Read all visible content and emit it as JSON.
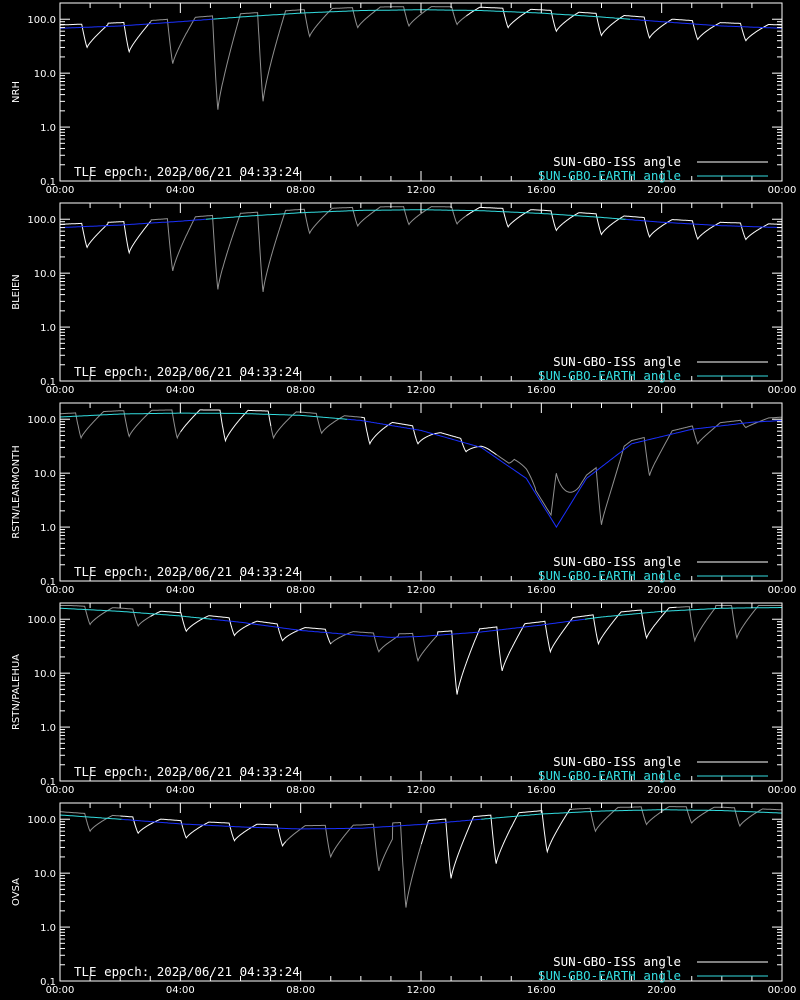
{
  "chart_data": [
    {
      "type": "line",
      "ylabel": "NRH",
      "yscale": "log",
      "ylim": [
        0.1,
        200
      ],
      "yticks": [
        "0.1",
        "1.0",
        "10.0",
        "100.0"
      ],
      "xlim": [
        "00:00",
        "24:00"
      ],
      "xticks": [
        "00:00",
        "04:00",
        "08:00",
        "12:00",
        "16:00",
        "20:00",
        "00:00"
      ],
      "annotation": "TLE epoch: 2023/06/21 04:33:24",
      "legend": [
        "SUN-GBO-ISS angle",
        "SUN-GBO-EARTH angle"
      ],
      "legend_position": "bottom-right",
      "earth_curve": [
        [
          0,
          68
        ],
        [
          2,
          75
        ],
        [
          4,
          90
        ],
        [
          6,
          110
        ],
        [
          8,
          130
        ],
        [
          10,
          145
        ],
        [
          12,
          150
        ],
        [
          14,
          145
        ],
        [
          16,
          130
        ],
        [
          18,
          110
        ],
        [
          20,
          90
        ],
        [
          22,
          75
        ],
        [
          24,
          68
        ]
      ],
      "iss_dips": [
        [
          0.9,
          30
        ],
        [
          2.3,
          25
        ],
        [
          3.75,
          15
        ],
        [
          5.25,
          2.1
        ],
        [
          6.75,
          3
        ],
        [
          8.3,
          48
        ],
        [
          9.9,
          70
        ],
        [
          11.6,
          75
        ],
        [
          13.2,
          80
        ],
        [
          14.9,
          70
        ],
        [
          16.5,
          60
        ],
        [
          18.0,
          50
        ],
        [
          19.6,
          45
        ],
        [
          21.2,
          42
        ],
        [
          22.8,
          40
        ]
      ],
      "iss_sunward_hours": [
        [
          3.0,
          13.5
        ]
      ]
    },
    {
      "type": "line",
      "ylabel": "BLEIEN",
      "yscale": "log",
      "ylim": [
        0.1,
        200
      ],
      "yticks": [
        "0.1",
        "1.0",
        "10.0",
        "100.0"
      ],
      "xlim": [
        "00:00",
        "24:00"
      ],
      "xticks": [
        "00:00",
        "04:00",
        "08:00",
        "12:00",
        "16:00",
        "20:00",
        "00:00"
      ],
      "annotation": "TLE epoch: 2023/06/21 04:33:24",
      "legend": [
        "SUN-GBO-ISS angle",
        "SUN-GBO-EARTH angle"
      ],
      "legend_position": "bottom-right",
      "earth_curve": [
        [
          0,
          70
        ],
        [
          2,
          78
        ],
        [
          4,
          92
        ],
        [
          6,
          112
        ],
        [
          8,
          132
        ],
        [
          10,
          146
        ],
        [
          12,
          150
        ],
        [
          14,
          144
        ],
        [
          16,
          128
        ],
        [
          18,
          108
        ],
        [
          20,
          88
        ],
        [
          22,
          76
        ],
        [
          24,
          70
        ]
      ],
      "iss_dips": [
        [
          0.9,
          30
        ],
        [
          2.3,
          24
        ],
        [
          3.75,
          11
        ],
        [
          5.25,
          5
        ],
        [
          6.75,
          4.5
        ],
        [
          8.3,
          55
        ],
        [
          9.9,
          75
        ],
        [
          11.6,
          80
        ],
        [
          13.2,
          82
        ],
        [
          14.9,
          72
        ],
        [
          16.5,
          62
        ],
        [
          18.0,
          52
        ],
        [
          19.6,
          47
        ],
        [
          21.2,
          43
        ],
        [
          22.8,
          42
        ]
      ],
      "iss_sunward_hours": [
        [
          3.0,
          13.5
        ]
      ]
    },
    {
      "type": "line",
      "ylabel": "RSTN/LEARMONTH",
      "yscale": "log",
      "ylim": [
        0.1,
        200
      ],
      "yticks": [
        "0.1",
        "1.0",
        "10.0",
        "100.0"
      ],
      "xlim": [
        "00:00",
        "24:00"
      ],
      "xticks": [
        "00:00",
        "04:00",
        "08:00",
        "12:00",
        "16:00",
        "20:00",
        "00:00"
      ],
      "annotation": "TLE epoch: 2023/06/21 04:33:24",
      "legend": [
        "SUN-GBO-ISS angle",
        "SUN-GBO-EARTH angle"
      ],
      "legend_position": "bottom-right",
      "earth_curve": [
        [
          0,
          110
        ],
        [
          2,
          125
        ],
        [
          4,
          130
        ],
        [
          6,
          128
        ],
        [
          8,
          118
        ],
        [
          10,
          95
        ],
        [
          12,
          62
        ],
        [
          14,
          30
        ],
        [
          15.5,
          8
        ],
        [
          16.5,
          1.0
        ],
        [
          17.5,
          8
        ],
        [
          19,
          35
        ],
        [
          21,
          65
        ],
        [
          23,
          88
        ],
        [
          24,
          95
        ]
      ],
      "iss_dips": [
        [
          0.7,
          45
        ],
        [
          2.3,
          48
        ],
        [
          3.9,
          45
        ],
        [
          5.5,
          40
        ],
        [
          7.1,
          45
        ],
        [
          8.7,
          55
        ],
        [
          10.3,
          35
        ],
        [
          11.9,
          35
        ],
        [
          13.5,
          25
        ],
        [
          15.1,
          18
        ],
        [
          16.5,
          10
        ],
        [
          18.0,
          1.1
        ],
        [
          19.6,
          9
        ],
        [
          21.2,
          35
        ],
        [
          22.8,
          70
        ]
      ],
      "iss_sunward_hours": [
        [
          0,
          4.0
        ],
        [
          7.0,
          10.0
        ],
        [
          14.5,
          24
        ]
      ]
    },
    {
      "type": "line",
      "ylabel": "RSTN/PALEHUA",
      "yscale": "log",
      "ylim": [
        0.1,
        200
      ],
      "yticks": [
        "0.1",
        "1.0",
        "10.0",
        "100.0"
      ],
      "xlim": [
        "00:00",
        "24:00"
      ],
      "xticks": [
        "00:00",
        "04:00",
        "08:00",
        "12:00",
        "16:00",
        "20:00",
        "00:00"
      ],
      "annotation": "TLE epoch: 2023/06/21 04:33:24",
      "legend": [
        "SUN-GBO-ISS angle",
        "SUN-GBO-EARTH angle"
      ],
      "legend_position": "bottom-right",
      "earth_curve": [
        [
          0,
          160
        ],
        [
          2,
          140
        ],
        [
          4,
          115
        ],
        [
          6,
          88
        ],
        [
          8,
          62
        ],
        [
          10,
          50
        ],
        [
          11,
          46
        ],
        [
          12,
          48
        ],
        [
          14,
          58
        ],
        [
          16,
          78
        ],
        [
          18,
          110
        ],
        [
          20,
          140
        ],
        [
          22,
          160
        ],
        [
          24,
          165
        ]
      ],
      "iss_dips": [
        [
          1.0,
          80
        ],
        [
          2.6,
          75
        ],
        [
          4.2,
          60
        ],
        [
          5.8,
          50
        ],
        [
          7.4,
          40
        ],
        [
          9.0,
          35
        ],
        [
          10.6,
          25
        ],
        [
          11.9,
          17
        ],
        [
          13.2,
          4
        ],
        [
          14.7,
          11
        ],
        [
          16.3,
          25
        ],
        [
          17.9,
          35
        ],
        [
          19.5,
          45
        ],
        [
          21.1,
          40
        ],
        [
          22.5,
          45
        ]
      ],
      "iss_sunward_hours": [
        [
          0,
          3.0
        ],
        [
          9.0,
          12.5
        ],
        [
          20.5,
          24
        ]
      ]
    },
    {
      "type": "line",
      "ylabel": "OVSA",
      "yscale": "log",
      "ylim": [
        0.1,
        200
      ],
      "yticks": [
        "0.1",
        "1.0",
        "10.0",
        "100.0"
      ],
      "xlim": [
        "00:00",
        "24:00"
      ],
      "xticks": [
        "00:00",
        "04:00",
        "08:00",
        "12:00",
        "16:00",
        "20:00",
        "00:00"
      ],
      "annotation": "TLE epoch: 2023/06/21 04:33:24",
      "legend": [
        "SUN-GBO-ISS angle",
        "SUN-GBO-EARTH angle"
      ],
      "legend_position": "bottom-right",
      "earth_curve": [
        [
          0,
          120
        ],
        [
          2,
          100
        ],
        [
          4,
          82
        ],
        [
          6,
          72
        ],
        [
          8,
          66
        ],
        [
          10,
          68
        ],
        [
          12,
          80
        ],
        [
          14,
          100
        ],
        [
          16,
          125
        ],
        [
          18,
          142
        ],
        [
          20,
          150
        ],
        [
          22,
          145
        ],
        [
          24,
          130
        ]
      ],
      "iss_dips": [
        [
          1.0,
          60
        ],
        [
          2.6,
          55
        ],
        [
          4.2,
          45
        ],
        [
          5.8,
          40
        ],
        [
          7.4,
          32
        ],
        [
          9.0,
          20
        ],
        [
          10.6,
          11
        ],
        [
          11.5,
          2.3
        ],
        [
          13.0,
          8
        ],
        [
          14.5,
          15
        ],
        [
          16.2,
          25
        ],
        [
          17.8,
          60
        ],
        [
          19.5,
          80
        ],
        [
          21.0,
          85
        ],
        [
          22.6,
          75
        ]
      ],
      "iss_sunward_hours": [
        [
          0,
          2.0
        ],
        [
          7.5,
          12.0
        ],
        [
          17.0,
          24
        ]
      ]
    }
  ],
  "colors": {
    "iss": "#ffffff",
    "iss_sunward": "#909090",
    "earth_blue": "#1a30ff",
    "earth_cyan": "#33dde0",
    "axes": "#ffffff",
    "background": "#000000"
  }
}
